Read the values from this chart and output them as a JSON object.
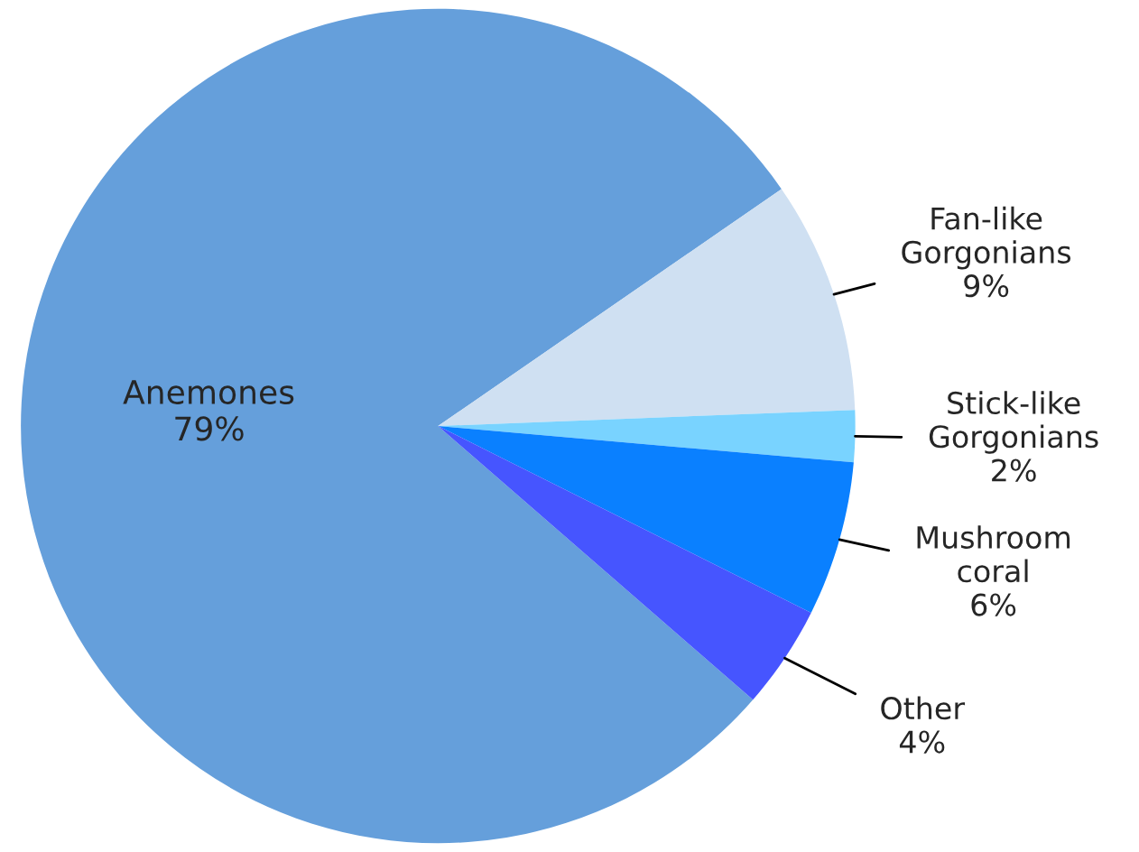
{
  "chart_data": {
    "type": "pie",
    "categories": [
      "Anemones",
      "Fan-like\nGorgonians",
      "Stick-like\nGorgonians",
      "Mushroom\ncoral",
      "Other"
    ],
    "values": [
      79,
      9,
      2,
      6,
      4
    ],
    "value_labels": [
      "79%",
      "9%",
      "2%",
      "6%",
      "4%"
    ],
    "colors": [
      "#659fdb",
      "#cfe0f2",
      "#79d3ff",
      "#0a80ff",
      "#4655ff"
    ],
    "legend": false
  }
}
